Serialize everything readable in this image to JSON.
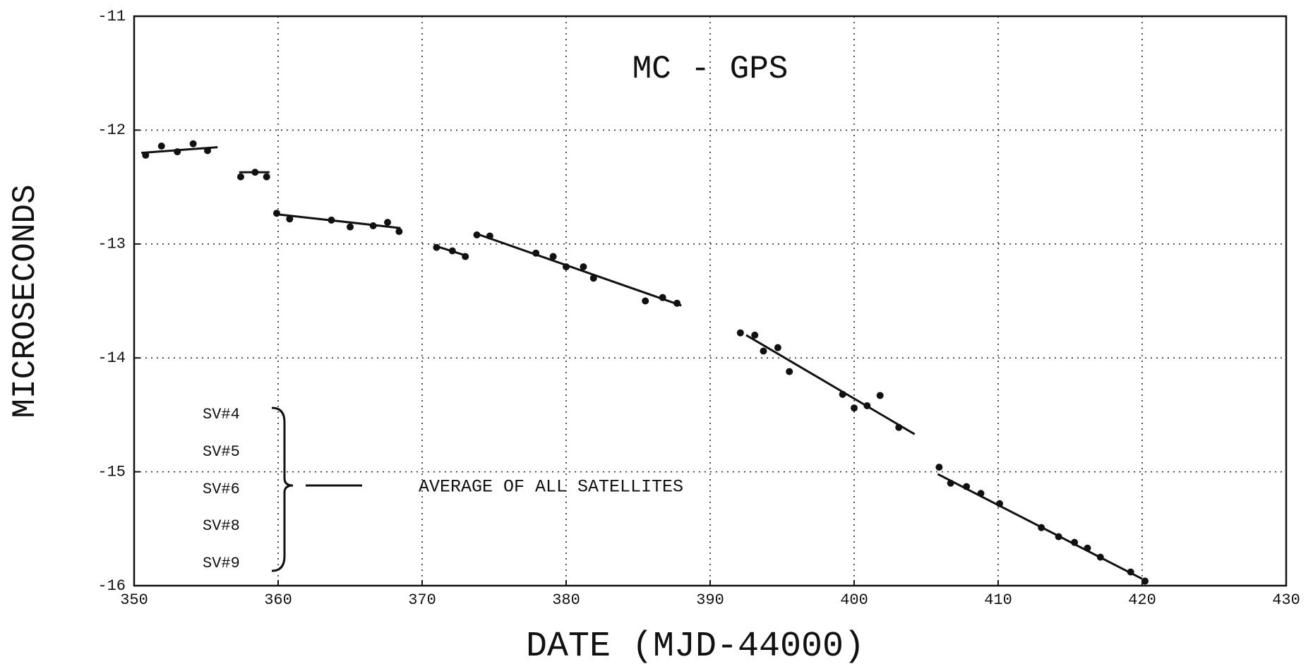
{
  "chart_data": {
    "type": "scatter",
    "title": "MC - GPS",
    "x_label": "DATE (MJD-44000)",
    "y_label": "MICROSECONDS",
    "xlim": [
      350,
      430
    ],
    "xticks": [
      350,
      360,
      370,
      380,
      390,
      400,
      410,
      420,
      430
    ],
    "ylim": [
      -16,
      -11
    ],
    "yticks": [
      -11,
      -12,
      -13,
      -14,
      -15,
      -16
    ],
    "grid": true,
    "color": "#111111",
    "groups": [
      {
        "x": [
          350.8,
          351.9,
          353.0,
          354.1,
          355.1
        ],
        "values": [
          -12.22,
          -12.14,
          -12.19,
          -12.12,
          -12.18
        ]
      },
      {
        "x": [
          357.4,
          358.4,
          359.2
        ],
        "values": [
          -12.41,
          -12.37,
          -12.41
        ]
      },
      {
        "x": [
          359.9,
          360.8,
          363.7,
          365.0,
          366.6,
          367.6,
          368.4
        ],
        "values": [
          -12.73,
          -12.78,
          -12.79,
          -12.85,
          -12.84,
          -12.81,
          -12.89
        ]
      },
      {
        "x": [
          371.0,
          372.1,
          373.0
        ],
        "values": [
          -13.03,
          -13.06,
          -13.11
        ]
      },
      {
        "x": [
          373.8,
          374.7,
          377.9,
          379.1,
          380.0,
          381.2,
          381.9,
          385.5,
          386.7,
          387.7
        ],
        "values": [
          -12.92,
          -12.93,
          -13.08,
          -13.11,
          -13.2,
          -13.2,
          -13.3,
          -13.5,
          -13.47,
          -13.52
        ]
      },
      {
        "x": [
          392.1,
          393.1,
          393.7,
          394.7,
          395.5,
          399.2,
          400.0,
          400.9,
          401.8,
          403.1
        ],
        "values": [
          -13.78,
          -13.8,
          -13.94,
          -13.91,
          -14.12,
          -14.32,
          -14.44,
          -14.42,
          -14.33,
          -14.61
        ]
      },
      {
        "x": [
          405.9,
          406.7,
          407.8,
          408.8,
          410.1,
          413.0,
          414.2,
          415.3,
          416.2,
          417.1,
          419.2,
          420.2
        ],
        "values": [
          -14.96,
          -15.1,
          -15.13,
          -15.19,
          -15.28,
          -15.49,
          -15.57,
          -15.62,
          -15.67,
          -15.75,
          -15.88,
          -15.96
        ]
      }
    ],
    "fits": [
      {
        "x": [
          350.5,
          355.8
        ],
        "values": [
          -12.2,
          -12.15
        ]
      },
      {
        "x": [
          357.3,
          359.4
        ],
        "values": [
          -12.37,
          -12.37
        ]
      },
      {
        "x": [
          360.0,
          368.5
        ],
        "values": [
          -12.74,
          -12.86
        ]
      },
      {
        "x": [
          371.0,
          373.0
        ],
        "values": [
          -13.02,
          -13.1
        ]
      },
      {
        "x": [
          374.0,
          388.0
        ],
        "values": [
          -12.92,
          -13.54
        ]
      },
      {
        "x": [
          392.5,
          404.2
        ],
        "values": [
          -13.8,
          -14.67
        ]
      },
      {
        "x": [
          405.8,
          420.0
        ],
        "values": [
          -15.02,
          -15.94
        ]
      }
    ],
    "legend": {
      "satellites": [
        "SV#4",
        "SV#5",
        "SV#6",
        "SV#8",
        "SV#9"
      ],
      "label": "AVERAGE OF ALL SATELLITES"
    }
  }
}
